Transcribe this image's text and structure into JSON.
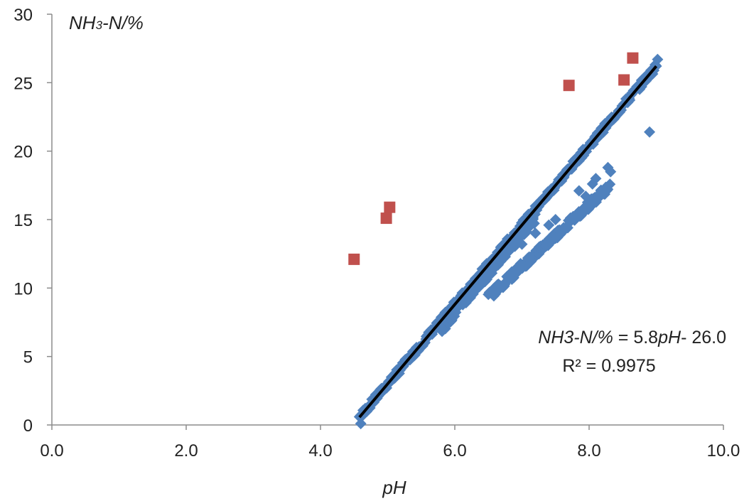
{
  "chart_data": {
    "type": "scatter",
    "xlabel": "pH",
    "ylabel_main": "NH",
    "ylabel_sub": "3",
    "ylabel_tail": "-N/%",
    "xlim": [
      0,
      10
    ],
    "ylim": [
      0,
      30
    ],
    "x_ticks": [
      "0.0",
      "2.0",
      "4.0",
      "6.0",
      "8.0",
      "10.0"
    ],
    "y_ticks": [
      "0",
      "5",
      "10",
      "15",
      "20",
      "25",
      "30"
    ],
    "grid": false,
    "legend": "none",
    "equation_parts": [
      "NH3-N/%",
      " = 5.8",
      "pH",
      "- 26.0"
    ],
    "r2_label": "R² = 0.9975",
    "colors": {
      "main_series": "#4f81bd",
      "outliers": "#c0504d",
      "trend": "#000000"
    },
    "series": [
      {
        "marker": "diamond",
        "color": "#4f81bd",
        "bands": [
          {
            "x_from": 4.6,
            "x_to": 9.0,
            "slope": 5.8,
            "intercept": -26.0,
            "spread": 0.25
          },
          {
            "x_from": 5.8,
            "x_to": 7.2,
            "slope": 5.8,
            "intercept": -26.6,
            "spread": 0.35
          },
          {
            "x_from": 6.5,
            "x_to": 8.3,
            "slope": 4.5,
            "intercept": -19.9,
            "spread": 0.3
          }
        ],
        "points": [
          {
            "x": 8.28,
            "y": 18.8
          },
          {
            "x": 8.32,
            "y": 18.5
          },
          {
            "x": 8.1,
            "y": 18.0
          },
          {
            "x": 8.05,
            "y": 17.6
          },
          {
            "x": 7.85,
            "y": 17.1
          },
          {
            "x": 7.95,
            "y": 16.7
          },
          {
            "x": 7.5,
            "y": 15.0
          },
          {
            "x": 7.4,
            "y": 14.6
          },
          {
            "x": 7.2,
            "y": 14.0
          },
          {
            "x": 7.0,
            "y": 13.2
          },
          {
            "x": 8.9,
            "y": 21.4
          },
          {
            "x": 9.02,
            "y": 26.7
          },
          {
            "x": 4.6,
            "y": 0.1
          },
          {
            "x": 4.58,
            "y": 0.6
          }
        ]
      },
      {
        "marker": "square",
        "color": "#c0504d",
        "points": [
          {
            "x": 4.5,
            "y": 12.1
          },
          {
            "x": 4.98,
            "y": 15.1
          },
          {
            "x": 5.03,
            "y": 15.9
          },
          {
            "x": 7.7,
            "y": 24.8
          },
          {
            "x": 8.52,
            "y": 25.2
          },
          {
            "x": 8.65,
            "y": 26.8
          }
        ]
      }
    ],
    "trendline": {
      "slope": 5.8,
      "intercept": -26.0,
      "x_from": 4.58,
      "x_to": 9.0
    }
  }
}
